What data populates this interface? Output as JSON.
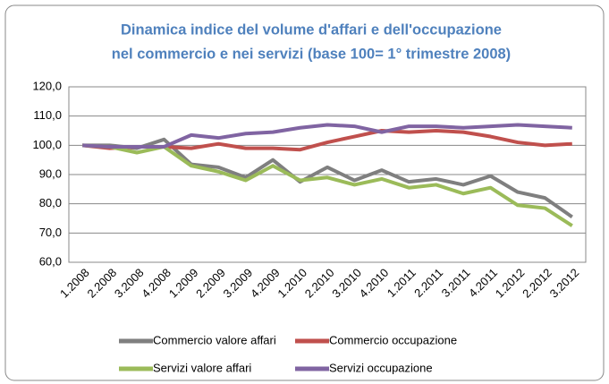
{
  "chart_data": {
    "type": "line",
    "title": [
      "Dinamica indice del volume d'affari e dell'occupazione",
      "nel commercio e nei servizi (base 100= 1° trimestre 2008)"
    ],
    "categories": [
      "1.2008",
      "2.2008",
      "3.2008",
      "4.2008",
      "1.2009",
      "2.2009",
      "3.2009",
      "4.2009",
      "1.2010",
      "2.2010",
      "3.2010",
      "4.2010",
      "1.2011",
      "2.2011",
      "3.2011",
      "4.2011",
      "1.2012",
      "2.2012",
      "3.2012"
    ],
    "series": [
      {
        "name": "Commercio valore affari",
        "color": "#7f7f7f",
        "values": [
          100,
          100,
          99,
          102,
          93.5,
          92.5,
          89,
          95,
          87.5,
          92.5,
          88,
          91.5,
          87.5,
          88.5,
          86.5,
          89.5,
          84,
          82,
          75.5
        ]
      },
      {
        "name": "Commercio occupazione",
        "color": "#c0504d",
        "values": [
          100,
          99,
          99.5,
          99.5,
          99,
          100.5,
          99,
          99,
          98.5,
          101,
          103,
          105,
          104.5,
          105,
          104.5,
          103,
          101,
          100,
          100.5
        ]
      },
      {
        "name": "Servizi valore affari",
        "color": "#9bbb59",
        "values": [
          100,
          99.5,
          97.5,
          99.5,
          93,
          91,
          88,
          93,
          88,
          89,
          86.5,
          88.5,
          85.5,
          86.5,
          83.5,
          85.5,
          79.5,
          78.5,
          72.5
        ]
      },
      {
        "name": "Servizi occupazione",
        "color": "#8064a2",
        "values": [
          100,
          99.5,
          99.5,
          99.5,
          103.5,
          102.5,
          104,
          104.5,
          106,
          107,
          106.5,
          104.5,
          106.5,
          106.5,
          106,
          106.5,
          107,
          106.5,
          106
        ]
      }
    ],
    "ylim": [
      60,
      120
    ],
    "yticks": [
      {
        "value": 60,
        "label": "60,0"
      },
      {
        "value": 70,
        "label": "70,0"
      },
      {
        "value": 80,
        "label": "80,0"
      },
      {
        "value": 90,
        "label": "90,0"
      },
      {
        "value": 100,
        "label": "100,0"
      },
      {
        "value": 110,
        "label": "110,0"
      },
      {
        "value": 120,
        "label": "120,0"
      }
    ],
    "grid": true
  }
}
